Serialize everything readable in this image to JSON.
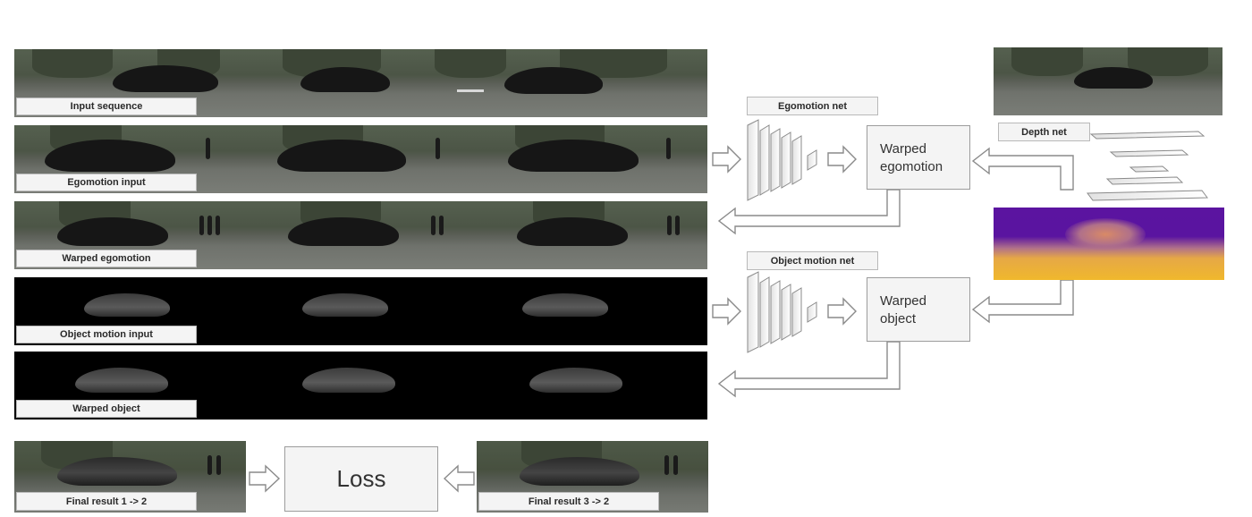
{
  "strips": [
    {
      "label": "Input sequence"
    },
    {
      "label": "Egomotion input"
    },
    {
      "label": "Warped egomotion"
    },
    {
      "label": "Object motion input"
    },
    {
      "label": "Warped object"
    }
  ],
  "final_results": [
    {
      "label": "Final result 1 -> 2"
    },
    {
      "label": "Final result 3 -> 2"
    }
  ],
  "loss": {
    "label": "Loss"
  },
  "networks": {
    "egomotion_net": "Egomotion net",
    "object_motion_net": "Object motion net",
    "depth_net": "Depth net"
  },
  "outputs": {
    "warped_egomotion": "Warped egomotion",
    "warped_object": "Warped object"
  },
  "colors": {
    "depth_far": "#5b14a0",
    "depth_near": "#f0b82c",
    "box_fill": "#f4f4f4",
    "arrow_stroke": "#8a8a8a"
  }
}
